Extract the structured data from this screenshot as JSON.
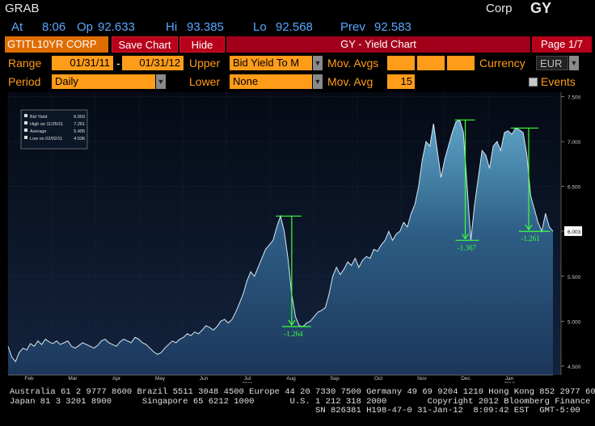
{
  "header": {
    "function_code": "GRAB",
    "security_type": "Corp",
    "function_name": "GY",
    "at_label": "At",
    "time": "8:06",
    "op_label": "Op",
    "open": "92.633",
    "hi_label": "Hi",
    "high": "93.385",
    "lo_label": "Lo",
    "low": "92.568",
    "prev_label": "Prev",
    "prev": "92.583"
  },
  "toolbar": {
    "ticker": "GTITL10YR CORP",
    "save_chart": "Save Chart",
    "hide": "Hide",
    "title": "GY - Yield Chart",
    "page": "Page 1/7"
  },
  "controls": {
    "range_label": "Range",
    "range_start": "01/31/11",
    "range_sep": "-",
    "range_end": "01/31/12",
    "upper_label": "Upper",
    "upper_value": "Bid Yield To M",
    "mov_avgs_label": "Mov. Avgs",
    "currency_label": "Currency",
    "currency_value": "EUR",
    "period_label": "Period",
    "period_value": "Daily",
    "lower_label": "Lower",
    "lower_value": "None",
    "mov_avg_label": "Mov. Avg",
    "mov_avg_value": "15",
    "events_label": "Events"
  },
  "legend": {
    "rows": [
      {
        "label": "Bid Yield",
        "value": "6.003"
      },
      {
        "label": "High on 11/25/11",
        "value": "7.261"
      },
      {
        "label": "Average",
        "value": "5.495"
      },
      {
        "label": "Low on 02/02/11",
        "value": "4.536"
      }
    ]
  },
  "chart_data": {
    "type": "area",
    "y_ticks": [
      "7.500",
      "7.000",
      "6.500",
      "6.003",
      "5.500",
      "5.000",
      "4.500"
    ],
    "x_ticks": [
      "Feb",
      "Mar",
      "Apr",
      "May",
      "Jun",
      "Jul",
      "Aug",
      "Sep",
      "Oct",
      "Nov",
      "Dec",
      "Jan"
    ],
    "x_year_labels": {
      "Jul": "2011",
      "Jan": "2012"
    },
    "ylim": [
      4.4,
      7.55
    ],
    "last_value": "6.003",
    "annotations": [
      "-1.264",
      "-1.367",
      "-1.261"
    ],
    "series": [
      {
        "values": [
          4.72,
          4.6,
          4.55,
          4.65,
          4.7,
          4.68,
          4.75,
          4.72,
          4.78,
          4.74,
          4.8,
          4.77,
          4.75,
          4.78,
          4.74,
          4.76,
          4.78,
          4.72,
          4.7,
          4.73,
          4.76,
          4.74,
          4.72,
          4.7,
          4.73,
          4.78,
          4.8,
          4.76,
          4.74,
          4.72,
          4.77,
          4.8,
          4.78,
          4.76,
          4.82,
          4.8,
          4.76,
          4.74,
          4.7,
          4.66,
          4.63,
          4.65,
          4.7,
          4.74,
          4.78,
          4.76,
          4.8,
          4.82,
          4.86,
          4.84,
          4.88,
          4.86,
          4.9,
          4.95,
          4.93,
          4.9,
          4.94,
          5.0,
          5.02,
          4.98,
          5.02,
          5.1,
          5.2,
          5.3,
          5.45,
          5.55,
          5.5,
          5.6,
          5.7,
          5.8,
          5.85,
          5.9,
          6.05,
          6.17,
          6.0,
          5.7,
          5.3,
          5.05,
          4.95,
          4.94,
          4.98,
          5.0,
          5.05,
          5.1,
          5.12,
          5.15,
          5.3,
          5.5,
          5.6,
          5.52,
          5.58,
          5.66,
          5.62,
          5.7,
          5.6,
          5.68,
          5.72,
          5.7,
          5.8,
          5.78,
          5.85,
          5.9,
          6.0,
          5.9,
          5.97,
          6.0,
          6.1,
          6.05,
          6.2,
          6.3,
          6.5,
          6.8,
          7.0,
          6.95,
          7.2,
          6.9,
          6.6,
          6.8,
          6.95,
          7.1,
          7.22,
          7.24,
          7.1,
          6.5,
          5.9,
          6.3,
          6.6,
          6.9,
          6.85,
          6.7,
          6.95,
          7.0,
          6.9,
          7.1,
          7.12,
          7.08,
          7.15,
          7.13,
          7.1,
          6.85,
          6.4,
          6.25,
          6.1,
          6.0,
          6.2,
          6.05,
          6.0
        ]
      }
    ]
  }
}
